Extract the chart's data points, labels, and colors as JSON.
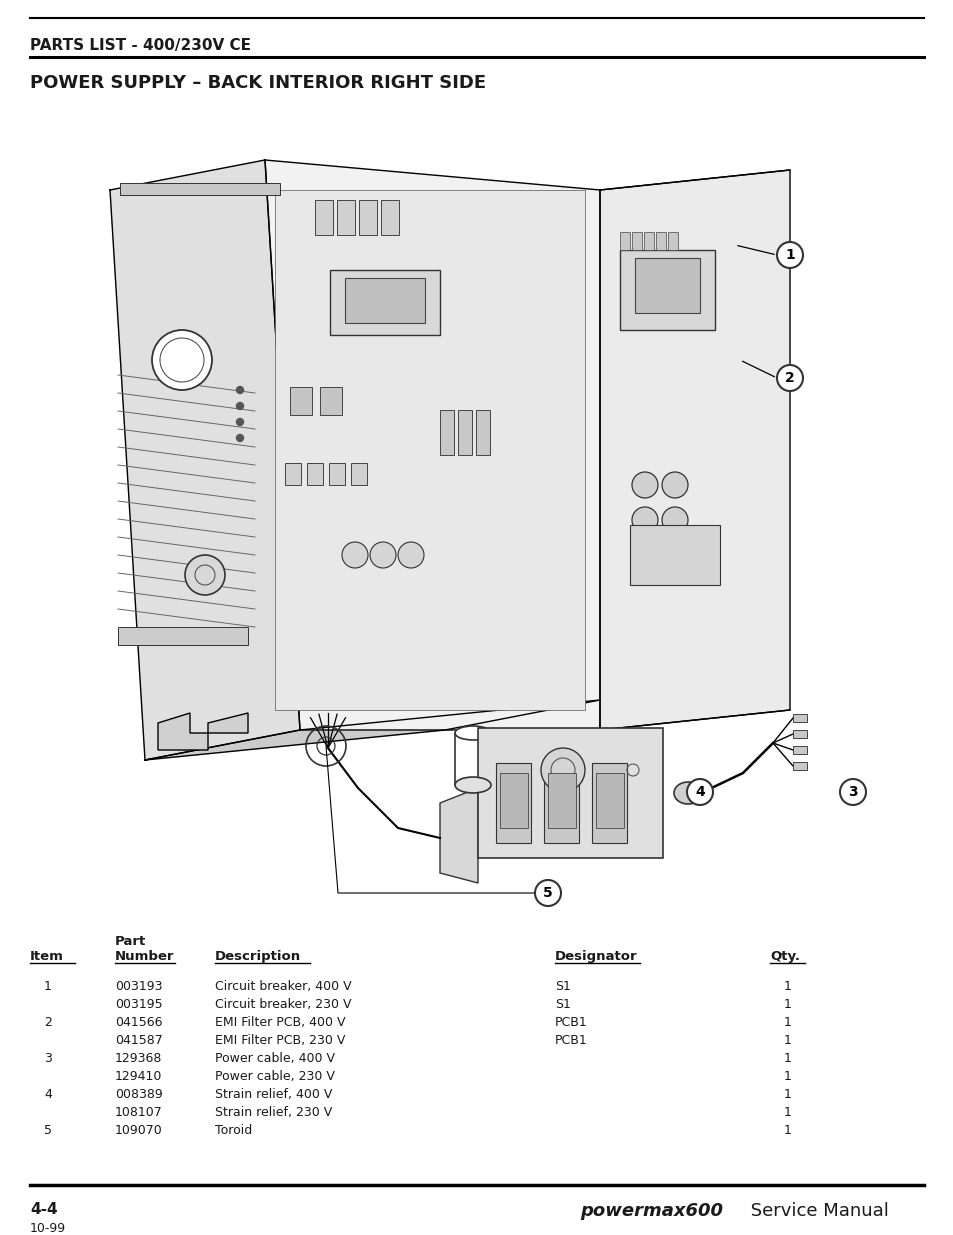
{
  "page_title1": "PARTS LIST - 400/230V CE",
  "page_title2": "POWER SUPPLY – BACK INTERIOR RIGHT SIDE",
  "table_col_header1": "Item",
  "table_col_header2": "Number",
  "table_col_header3": "Description",
  "table_col_header4": "Designator",
  "table_col_header5": "Qty.",
  "table_data": [
    [
      "1",
      "003193",
      "Circuit breaker, 400 V",
      "S1",
      "1"
    ],
    [
      "",
      "003195",
      "Circuit breaker, 230 V",
      "S1",
      "1"
    ],
    [
      "2",
      "041566",
      "EMI Filter PCB, 400 V",
      "PCB1",
      "1"
    ],
    [
      "",
      "041587",
      "EMI Filter PCB, 230 V",
      "PCB1",
      "1"
    ],
    [
      "3",
      "129368",
      "Power cable, 400 V",
      "",
      "1"
    ],
    [
      "",
      "129410",
      "Power cable, 230 V",
      "",
      "1"
    ],
    [
      "4",
      "008389",
      "Strain relief, 400 V",
      "",
      "1"
    ],
    [
      "",
      "108107",
      "Strain relief, 230 V",
      "",
      "1"
    ],
    [
      "5",
      "109070",
      "Toroid",
      "",
      "1"
    ]
  ],
  "footer_left": "4-4",
  "footer_date": "10-99",
  "footer_brand": "powermax600",
  "footer_right": " Service Manual",
  "bg_color": "#ffffff",
  "text_color": "#1a1a1a",
  "line_color": "#000000"
}
